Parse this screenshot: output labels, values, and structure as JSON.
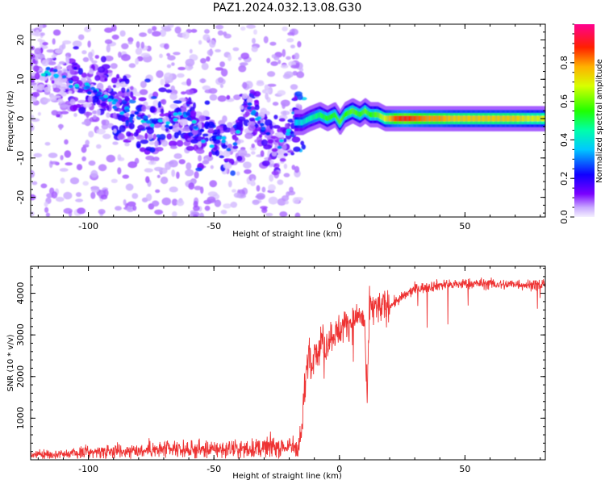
{
  "title": "PAZ1.2024.032.13.08.G30",
  "colors": {
    "snr_line": "#ee3333",
    "axes": "#000000",
    "background": "#ffffff"
  },
  "chart_data": [
    {
      "type": "heatmap",
      "name": "spectrogram",
      "xlabel": "Height of straight line (km)",
      "ylabel": "Frequency (Hz)",
      "xlim": [
        -123,
        82
      ],
      "ylim": [
        -25,
        24
      ],
      "x_ticks": [
        -100,
        -50,
        0,
        50
      ],
      "y_ticks": [
        -20,
        -10,
        0,
        10,
        20
      ],
      "colorbar": {
        "label": "Normalized spectral amplitude",
        "range": [
          0,
          1
        ],
        "ticks": [
          0.0,
          0.2,
          0.4,
          0.6,
          0.8
        ],
        "colormap": "rainbow (white/lavender → purple → blue → cyan → green → yellow → red → magenta)"
      },
      "ridge": {
        "description": "main energy ridge (frequency in Hz vs height in km) with amplitude 0–1",
        "x": [
          -120,
          -110,
          -100,
          -92,
          -85,
          -78,
          -70,
          -62,
          -55,
          -48,
          -42,
          -38,
          -35,
          -32,
          -28,
          -25,
          -22,
          -20,
          -18,
          -15,
          -12,
          -8,
          -5,
          -2,
          0,
          2,
          5,
          8,
          10,
          12,
          15,
          18,
          22,
          26,
          30,
          35,
          40,
          45,
          50,
          55,
          60,
          65,
          70,
          75,
          80
        ],
        "freq": [
          12,
          10,
          8,
          5,
          2,
          0,
          -2,
          2,
          -4,
          -5,
          -7,
          5,
          2,
          -1,
          -4,
          -8,
          -4,
          -3,
          -1,
          -1,
          0,
          1,
          0,
          1,
          -1,
          1,
          2,
          1,
          2,
          1,
          1,
          0,
          0,
          0,
          0,
          0,
          0,
          0,
          0,
          0,
          0,
          0,
          0,
          0,
          0
        ],
        "amplitude": [
          0.15,
          0.2,
          0.25,
          0.3,
          0.32,
          0.3,
          0.3,
          0.28,
          0.28,
          0.3,
          0.3,
          0.28,
          0.25,
          0.25,
          0.22,
          0.2,
          0.2,
          0.25,
          0.35,
          0.4,
          0.45,
          0.5,
          0.55,
          0.55,
          0.6,
          0.55,
          0.6,
          0.55,
          0.6,
          0.55,
          0.6,
          0.7,
          0.85,
          0.9,
          0.85,
          0.8,
          0.8,
          0.75,
          0.75,
          0.75,
          0.75,
          0.75,
          0.75,
          0.7,
          0.7
        ]
      }
    },
    {
      "type": "line",
      "name": "snr",
      "xlabel": "Height of straight line (km)",
      "ylabel": "SNR (10 * v/v)",
      "xlim": [
        -123,
        82
      ],
      "ylim": [
        0,
        4650
      ],
      "x_ticks": [
        -100,
        -50,
        0,
        50
      ],
      "y_ticks": [
        1000,
        2000,
        3000,
        4000
      ],
      "series": [
        {
          "x": [
            -123,
            -110,
            -100,
            -90,
            -80,
            -70,
            -60,
            -50,
            -40,
            -30,
            -25,
            -20,
            -18,
            -16,
            -15,
            -14,
            -13,
            -12,
            -11,
            -10,
            -9,
            -8,
            -7,
            -6,
            -5,
            -3,
            0,
            3,
            5,
            8,
            10,
            11,
            12,
            15,
            20,
            25,
            30,
            35,
            40,
            45,
            50,
            55,
            60,
            65,
            70,
            75,
            80,
            82
          ],
          "y": [
            120,
            140,
            180,
            220,
            230,
            240,
            240,
            250,
            250,
            290,
            320,
            300,
            320,
            380,
            700,
            1600,
            2200,
            2700,
            2100,
            2900,
            2500,
            2700,
            3000,
            2600,
            2800,
            3000,
            3100,
            3300,
            3300,
            3500,
            3300,
            1300,
            3700,
            3650,
            3700,
            3900,
            4100,
            4150,
            4200,
            4200,
            4230,
            4230,
            4230,
            4200,
            4230,
            4200,
            4200,
            4250
          ]
        }
      ]
    }
  ]
}
